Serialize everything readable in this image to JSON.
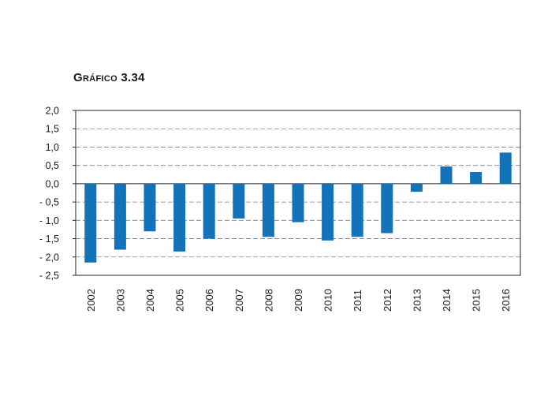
{
  "chart_data": {
    "type": "bar",
    "title": "Gráfico 3.34",
    "categories": [
      "2002",
      "2003",
      "2004",
      "2005",
      "2006",
      "2007",
      "2008",
      "2009",
      "2010",
      "2011",
      "2012",
      "2013",
      "2014",
      "2015",
      "2016"
    ],
    "values": [
      -2.15,
      -1.8,
      -1.3,
      -1.85,
      -1.5,
      -0.95,
      -1.45,
      -1.05,
      -1.55,
      -1.45,
      -1.35,
      -0.22,
      0.47,
      0.32,
      0.85
    ],
    "ylim": [
      -2.5,
      2.0
    ],
    "yticks": [
      2.0,
      1.5,
      1.0,
      0.5,
      0.0,
      -0.5,
      -1.0,
      -1.5,
      -2.0,
      -2.5
    ],
    "ytick_labels": [
      "2,0",
      "1,5",
      "1,0",
      "0,5",
      "0,0",
      "- 0,5",
      "- 1,0",
      "- 1,5",
      "- 2,0",
      "- 2,5"
    ],
    "bar_color": "#1273b8",
    "grid": true,
    "legend": "none"
  }
}
